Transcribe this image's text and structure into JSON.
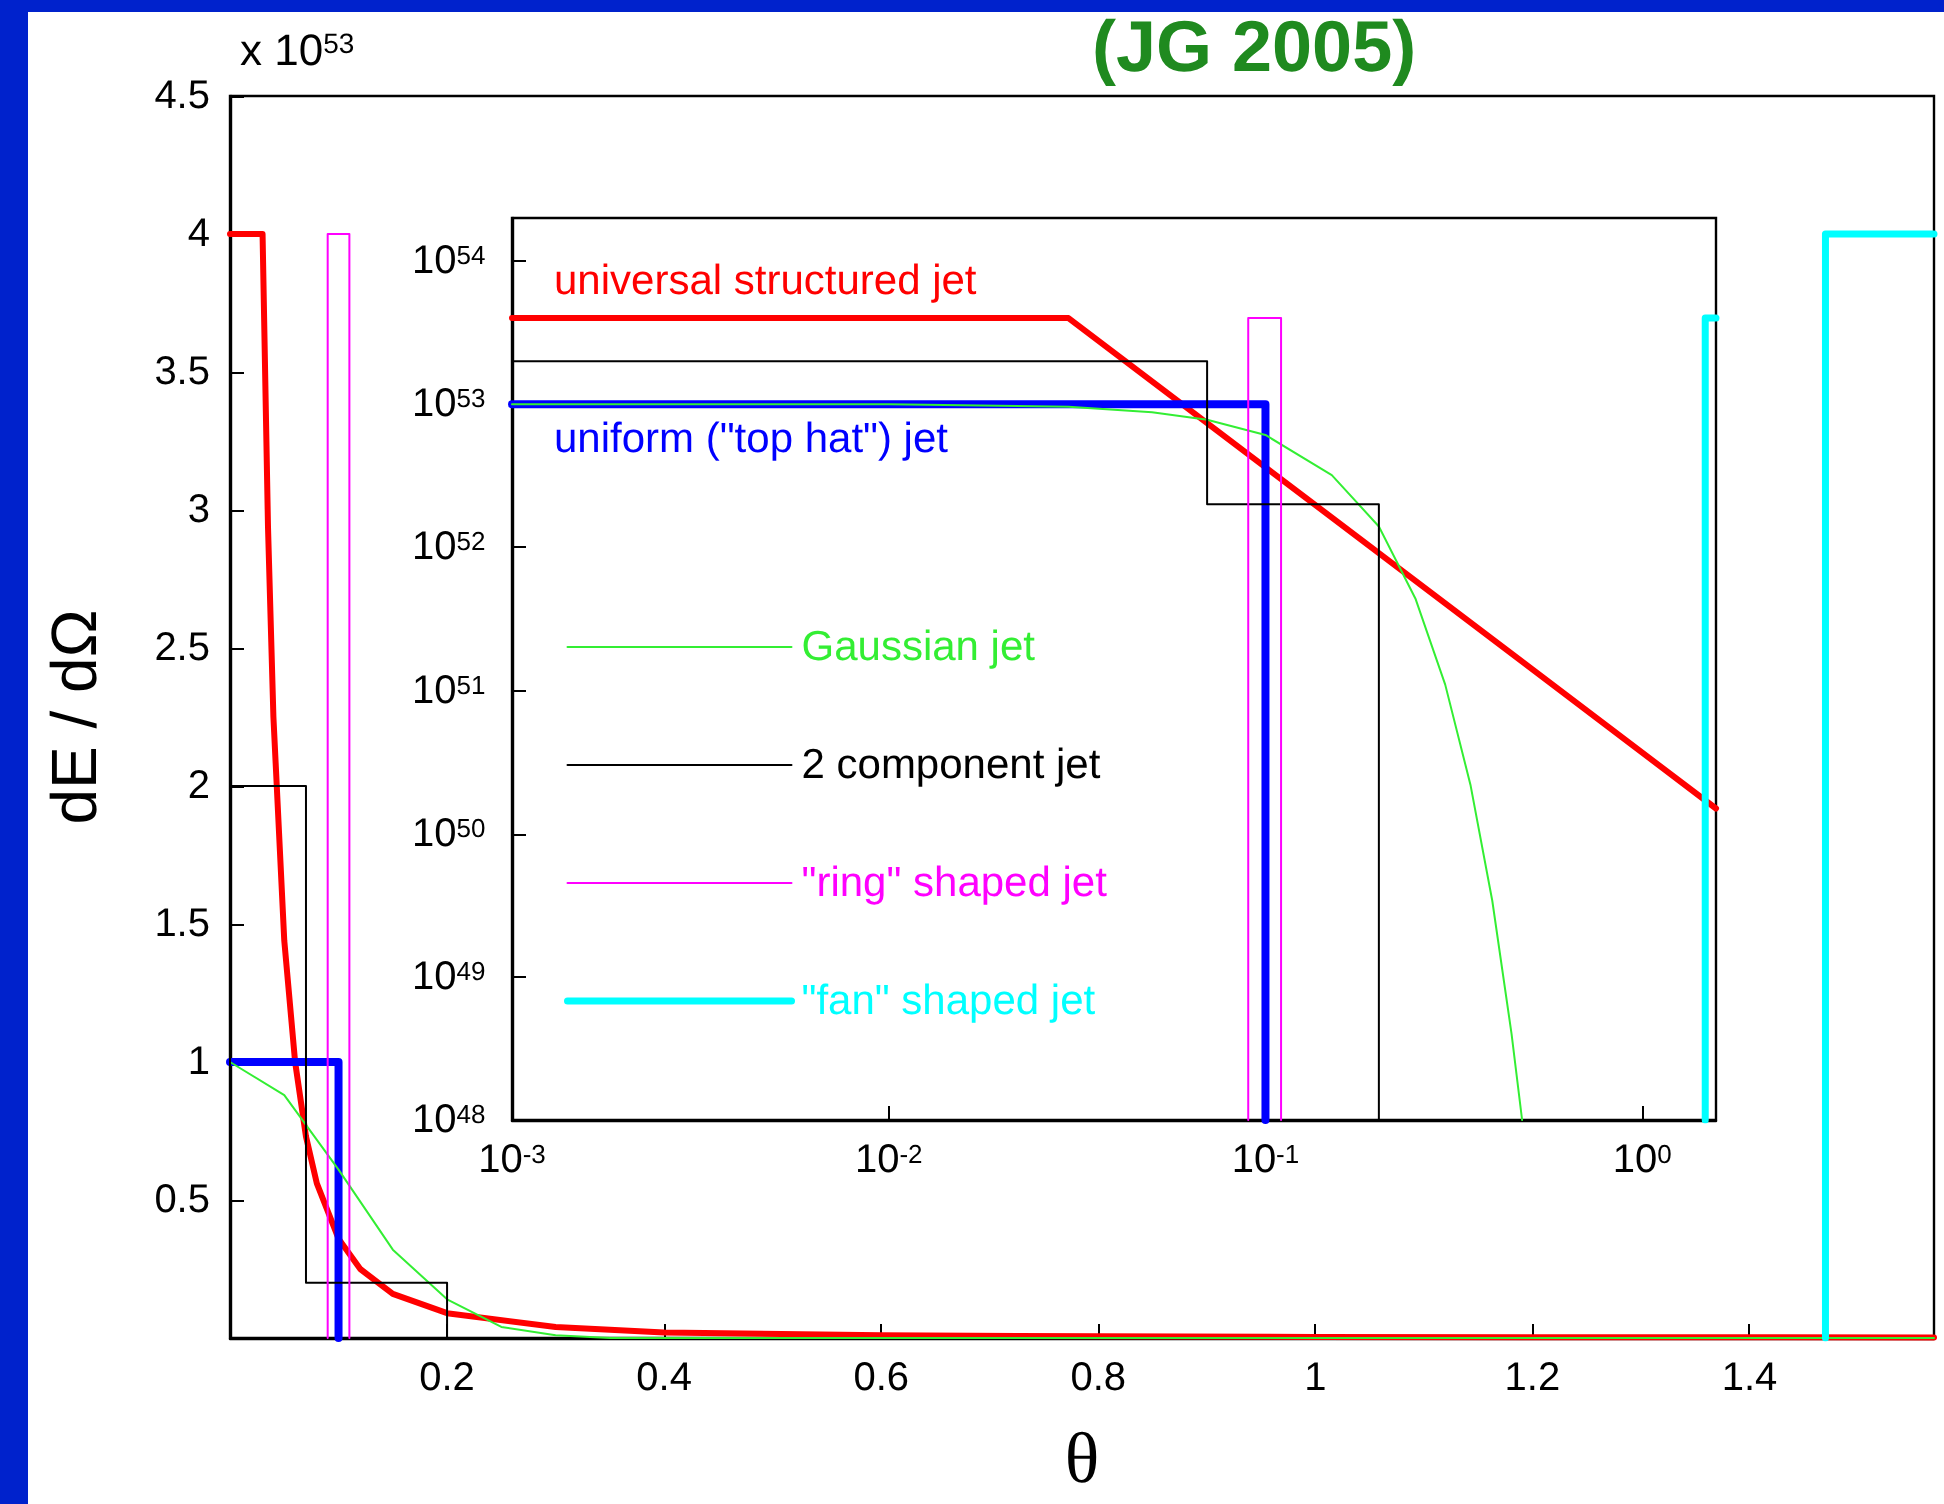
{
  "chart_data": [
    {
      "type": "line",
      "title": "(JG 2005)",
      "xlabel": "θ",
      "ylabel": "dE / dΩ",
      "annotations": [
        "x 10$^{53}$"
      ],
      "xlim": [
        0,
        1.57
      ],
      "ylim": [
        0,
        4.5
      ],
      "xticks": [
        0.2,
        0.4,
        0.6,
        0.8,
        1,
        1.2,
        1.4
      ],
      "yticks": [
        0.5,
        1,
        1.5,
        2,
        2.5,
        3,
        3.5,
        4,
        4.5
      ],
      "grid": false,
      "marker": "none",
      "series": [
        {
          "color": "#ff0000",
          "x": [
            0,
            0.03,
            0.035,
            0.04,
            0.05,
            0.06,
            0.07,
            0.08,
            0.1,
            0.12,
            0.15,
            0.2,
            0.3,
            0.4,
            0.6,
            0.8,
            1.0,
            1.2,
            1.57
          ],
          "values": [
            4,
            4,
            2.94,
            2.25,
            1.44,
            1.0,
            0.73,
            0.56,
            0.36,
            0.25,
            0.16,
            0.09,
            0.04,
            0.02,
            0.01,
            0.006,
            0.004,
            0.003,
            0.002
          ]
        },
        {
          "color": "#0000ff",
          "x": [
            0,
            0.1,
            0.1
          ],
          "values": [
            1,
            1,
            0
          ]
        },
        {
          "color": "#33ee33",
          "x": [
            0,
            0.05,
            0.1,
            0.15,
            0.2,
            0.25,
            0.3,
            0.35,
            0.4,
            0.5,
            1.57
          ],
          "values": [
            1,
            0.88,
            0.61,
            0.32,
            0.14,
            0.04,
            0.01,
            0,
            0,
            0,
            0
          ]
        },
        {
          "color": "#000000",
          "x": [
            0,
            0,
            0.07,
            0.07,
            0.2,
            0.2
          ],
          "values": [
            0,
            2,
            2,
            0.2,
            0.2,
            0
          ]
        },
        {
          "color": "#ff00ff",
          "x": [
            0.09,
            0.09,
            0.11,
            0.11
          ],
          "values": [
            0,
            4,
            4,
            0
          ]
        },
        {
          "color": "#00ffff",
          "x": [
            1.47,
            1.47,
            1.57
          ],
          "values": [
            0,
            4,
            4
          ]
        }
      ]
    },
    {
      "type": "line",
      "log": "xy",
      "legend": "left",
      "marker": "none",
      "grid": false,
      "xlim": [
        0.001,
        1.57
      ],
      "ylim": [
        1e+48,
        2e+54
      ],
      "xticks": [
        {
          "value": 0.001,
          "label": "10$^{-3}$"
        },
        {
          "value": 0.01,
          "label": "10$^{-2}$"
        },
        {
          "value": 0.1,
          "label": "10$^{-1}$"
        },
        {
          "value": 1,
          "label": "10$^{0}$"
        }
      ],
      "yticks": [
        {
          "value": 1e+48,
          "label": "10$^{48}$"
        },
        {
          "value": 1e+49,
          "label": "10$^{49}$"
        },
        {
          "value": 1e+50,
          "label": "10$^{50}$"
        },
        {
          "value": 1e+51,
          "label": "10$^{51}$"
        },
        {
          "value": 1e+52,
          "label": "10$^{52}$"
        },
        {
          "value": 1e+53,
          "label": "10$^{53}$"
        },
        {
          "value": 1e+54,
          "label": "10$^{54}$"
        }
      ],
      "series": [
        {
          "name": "universal structured jet",
          "color": "#ff0000",
          "x": [
            0.001,
            0.03,
            1.57
          ],
          "values": [
            4e+53,
            4e+53,
            1.5e+50
          ]
        },
        {
          "name": "uniform (\"top hat\") jet",
          "color": "#0000ff",
          "x": [
            0.001,
            0.1,
            0.1
          ],
          "values": [
            1e+53,
            1e+53,
            1e+48
          ]
        },
        {
          "name": "Gaussian jet",
          "color": "#33ee33",
          "x": [
            0.001,
            0.01,
            0.03,
            0.05,
            0.07,
            0.1,
            0.15,
            0.2,
            0.25,
            0.3,
            0.35,
            0.4,
            0.45,
            0.48
          ],
          "values": [
            1e+53,
            1e+53,
            9.6e+52,
            8.8e+52,
            7.8e+52,
            6.1e+52,
            3.2e+52,
            1.4e+52,
            4.4e+51,
            1.1e+51,
            2.2e+50,
            3.4e+49,
            4e+48,
            1e+48
          ]
        },
        {
          "name": "2 component jet",
          "color": "#000000",
          "x": [
            0.001,
            0.07,
            0.07,
            0.2,
            0.2
          ],
          "values": [
            2e+53,
            2e+53,
            2e+52,
            2e+52,
            1e+48
          ]
        },
        {
          "name": "\"ring\" shaped jet",
          "color": "#ff00ff",
          "x": [
            0.09,
            0.09,
            0.11,
            0.11
          ],
          "values": [
            1e+48,
            4e+53,
            4e+53,
            1e+48
          ]
        },
        {
          "name": "\"fan\" shaped jet",
          "color": "#00ffff",
          "x": [
            1.47,
            1.47,
            1.57
          ],
          "values": [
            1e+48,
            4e+53,
            4e+53
          ]
        }
      ]
    }
  ]
}
